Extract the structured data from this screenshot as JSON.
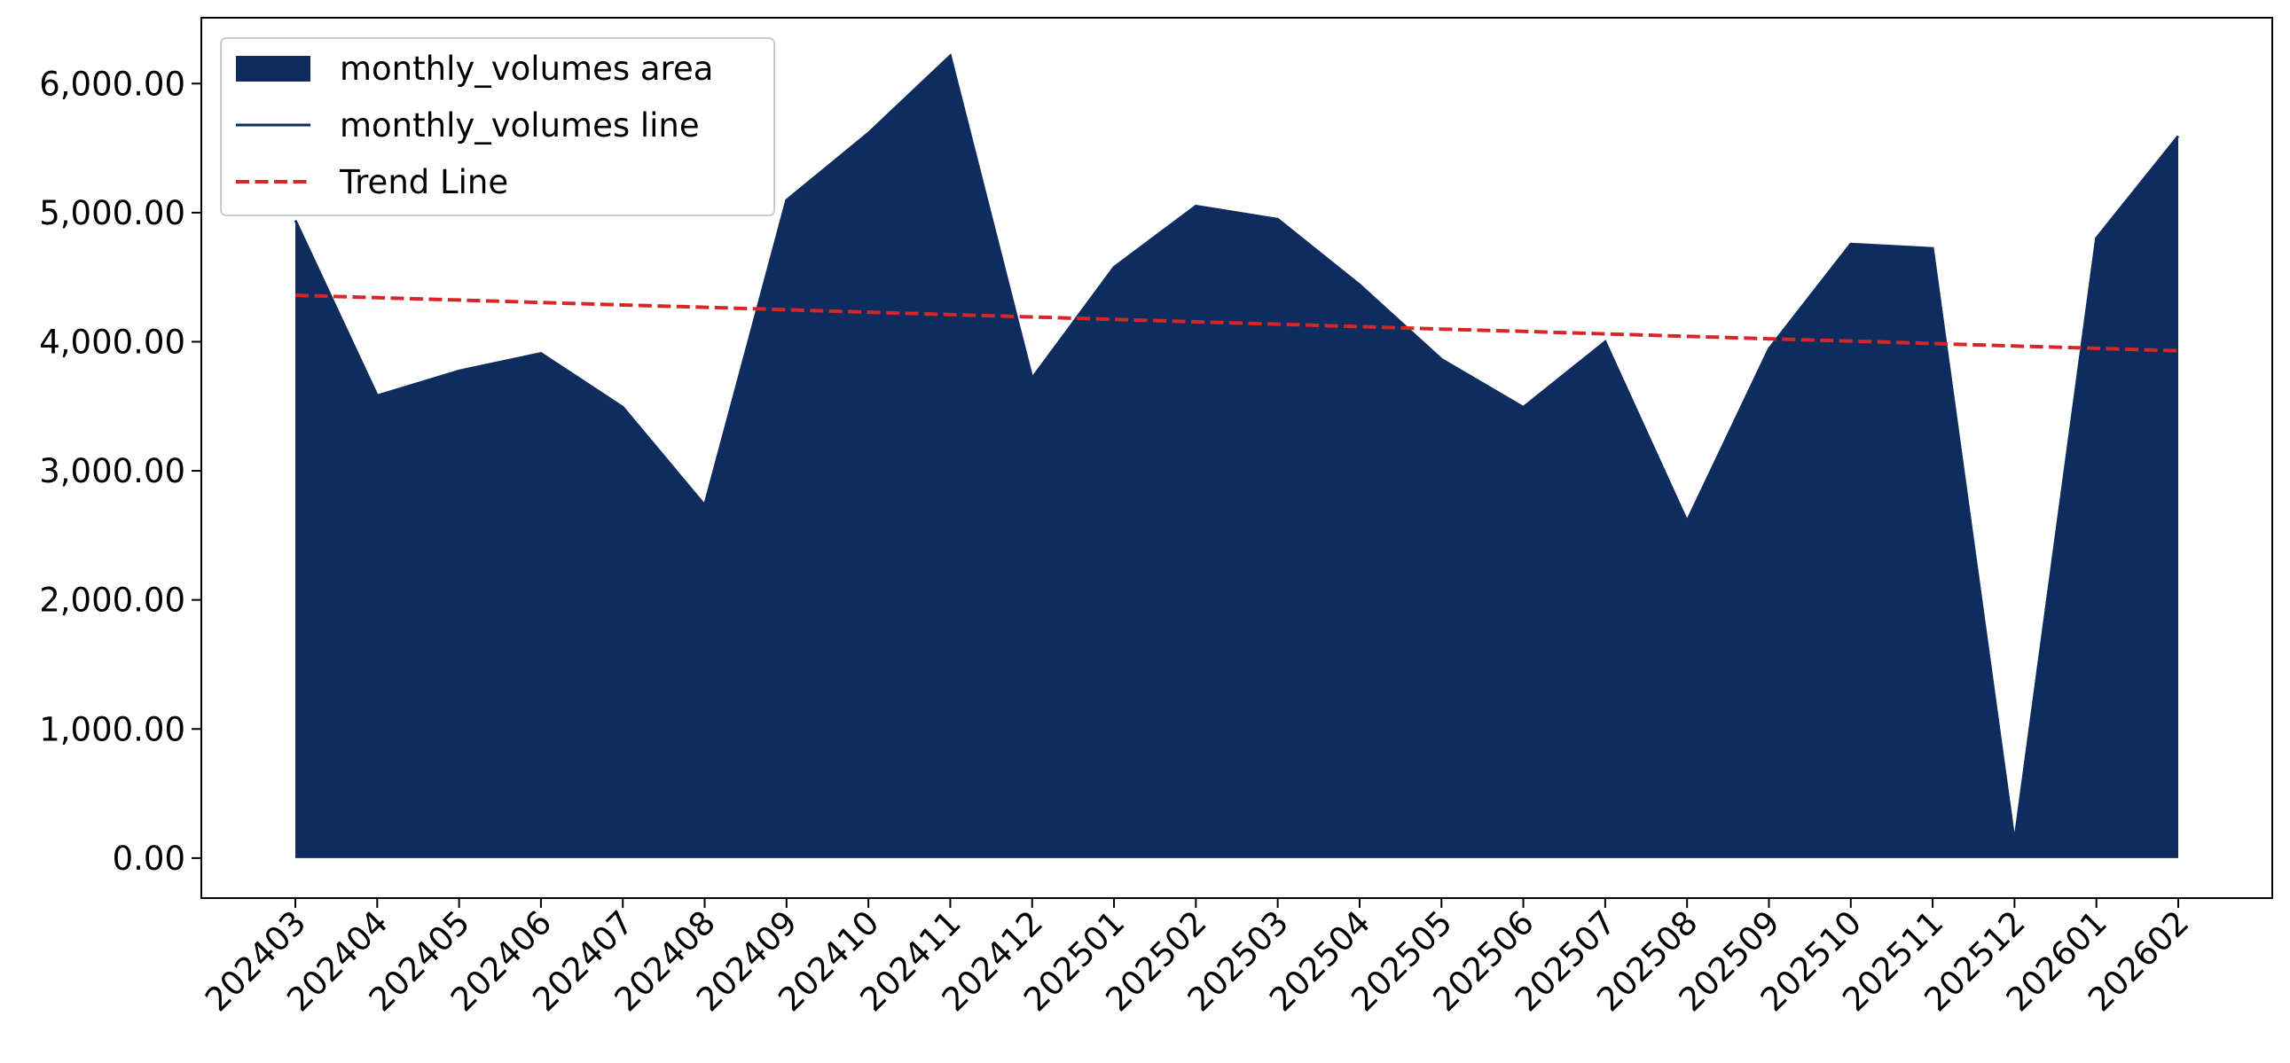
{
  "chart_data": {
    "type": "area",
    "categories": [
      "202403",
      "202404",
      "202405",
      "202406",
      "202407",
      "202408",
      "202409",
      "202410",
      "202411",
      "202412",
      "202501",
      "202502",
      "202503",
      "202504",
      "202505",
      "202506",
      "202507",
      "202508",
      "202509",
      "202510",
      "202511",
      "202512",
      "202601",
      "202602"
    ],
    "series": [
      {
        "name": "monthly_volumes area",
        "color": "#0e2c5e",
        "style": "area",
        "values": [
          4940,
          3582,
          3774,
          3910,
          3492,
          2734,
          5096,
          5616,
          6215,
          3718,
          4576,
          5051,
          4949,
          4441,
          3864,
          3492,
          4000,
          2610,
          3944,
          4757,
          4723,
          124,
          4802,
          5593
        ]
      },
      {
        "name": "monthly_volumes line",
        "color": "#0e2c5e",
        "style": "line",
        "values": [
          4940,
          3582,
          3774,
          3910,
          3492,
          2734,
          5096,
          5616,
          6215,
          3718,
          4576,
          5051,
          4949,
          4441,
          3864,
          3492,
          4000,
          2610,
          3944,
          4757,
          4723,
          124,
          4802,
          5593
        ]
      },
      {
        "name": "Trend Line",
        "color": "#d62728",
        "style": "dashed",
        "values": [
          4360,
          4341,
          4323,
          4304,
          4285,
          4267,
          4248,
          4229,
          4210,
          4192,
          4173,
          4154,
          4136,
          4117,
          4098,
          4080,
          4061,
          4042,
          4023,
          4005,
          3986,
          3967,
          3949,
          3930
        ]
      }
    ],
    "ylim": [
      -310,
      6510
    ],
    "yticks": [
      {
        "value": 0,
        "label": "0.00"
      },
      {
        "value": 1000,
        "label": "1,000.00"
      },
      {
        "value": 2000,
        "label": "2,000.00"
      },
      {
        "value": 3000,
        "label": "3,000.00"
      },
      {
        "value": 4000,
        "label": "4,000.00"
      },
      {
        "value": 5000,
        "label": "5,000.00"
      },
      {
        "value": 6000,
        "label": "6,000.00"
      }
    ],
    "legend": "upper left",
    "grid": false
  }
}
